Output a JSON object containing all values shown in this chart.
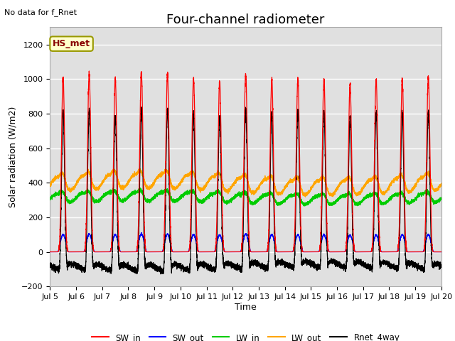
{
  "title": "Four-channel radiometer",
  "top_left_text": "No data for f_Rnet",
  "annotation_box": "HS_met",
  "ylabel": "Solar radiation (W/m2)",
  "xlabel": "Time",
  "ylim": [
    -200,
    1300
  ],
  "yticks": [
    -200,
    0,
    200,
    400,
    600,
    800,
    1000,
    1200
  ],
  "xtick_labels": [
    "Jul 5",
    "Jul 6",
    "Jul 7",
    "Jul 8",
    "Jul 9",
    "Jul 10",
    "Jul 11",
    "Jul 12",
    "Jul 13",
    "Jul 14",
    "Jul 15",
    "Jul 16",
    "Jul 17",
    "Jul 18",
    "Jul 19",
    "Jul 20"
  ],
  "colors": {
    "SW_in": "#ff0000",
    "SW_out": "#0000ff",
    "LW_in": "#00cc00",
    "LW_out": "#ffa500",
    "Rnet_4way": "#000000"
  },
  "bg_color": "#ffffff",
  "plot_bg_color": "#e0e0e0",
  "grid_color": "#ffffff",
  "title_fontsize": 13,
  "label_fontsize": 9,
  "tick_fontsize": 8,
  "annotation_facecolor": "#ffffcc",
  "annotation_edgecolor": "#999900",
  "annotation_textcolor": "#880000"
}
